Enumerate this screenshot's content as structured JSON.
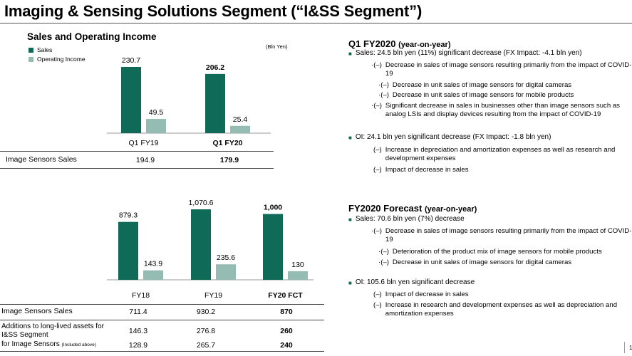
{
  "page": {
    "title": "Imaging & Sensing Solutions Segment (“I&SS Segment”)",
    "page_number": "1"
  },
  "colors": {
    "sales": "#0f6b57",
    "oi": "#94bcb2"
  },
  "chart_data": [
    {
      "type": "bar",
      "title": "Sales and Operating Income",
      "unit": "(Bln Yen)",
      "categories": [
        "Q1 FY19",
        "Q1 FY20"
      ],
      "series": [
        {
          "name": "Sales",
          "values": [
            230.7,
            206.2
          ],
          "labels": [
            "230.7",
            "206.2"
          ]
        },
        {
          "name": "Operating Income",
          "values": [
            49.5,
            25.4
          ],
          "labels": [
            "49.5",
            "25.4"
          ]
        }
      ],
      "ylim": [
        0,
        230.7
      ]
    },
    {
      "type": "bar",
      "categories": [
        "FY18",
        "FY19",
        "FY20 FCT"
      ],
      "series": [
        {
          "name": "Sales",
          "values": [
            879.3,
            1070.6,
            1000
          ],
          "labels": [
            "879.3",
            "1,070.6",
            "1,000"
          ]
        },
        {
          "name": "Operating Income",
          "values": [
            143.9,
            235.6,
            130
          ],
          "labels": [
            "143.9",
            "235.6",
            "130"
          ]
        }
      ],
      "ylim": [
        0,
        1070.6
      ]
    }
  ],
  "table1": {
    "rows": [
      {
        "label": "Image Sensors Sales",
        "values": [
          "194.9",
          "179.9"
        ]
      }
    ]
  },
  "table2": {
    "rows": [
      {
        "label": "Image Sensors Sales",
        "values": [
          "711.4",
          "930.2",
          "870"
        ]
      },
      {
        "label": "Additions to long-lived assets for I&SS Segment",
        "label_line1": "Additions to long-lived assets for",
        "label_line2": "I&SS Segment",
        "values": [
          "146.3",
          "276.8",
          "260"
        ]
      },
      {
        "label": "for Image Sensors",
        "label_note": "(Included above)",
        "values": [
          "128.9",
          "265.7",
          "240"
        ]
      }
    ]
  },
  "q1": {
    "title": "Q1 FY2020",
    "subtitle": "(year-on-year)",
    "sales_bullet": "Sales: 24.5 bln yen (11%) significant decrease (FX Impact: -4.1 bln yen)",
    "sales_items": [
      {
        "marker": "·(–)",
        "text": "Decrease in sales of image sensors resulting primarily from the impact of COVID-19"
      },
      {
        "marker": "·(–)",
        "text": "Decrease in unit sales of image sensors for digital cameras"
      },
      {
        "marker": "·(–)",
        "text": "Decrease in unit sales of image sensors for mobile products"
      },
      {
        "marker": "·(–)",
        "text": "Significant decrease in sales in businesses other than image sensors such as analog LSIs and display devices resulting from the impact of COVID-19"
      }
    ],
    "oi_bullet": "OI: 24.1 bln yen significant decrease (FX Impact: -1.8 bln yen)",
    "oi_items": [
      {
        "marker": "(–)",
        "text": "Increase in depreciation and amortization expenses as well as research and development expenses"
      },
      {
        "marker": "(–)",
        "text": "Impact of decrease in sales"
      }
    ]
  },
  "forecast": {
    "title": "FY2020 Forecast",
    "subtitle": "(year-on-year)",
    "sales_bullet": "Sales: 70.6 bln yen (7%) decrease",
    "sales_items": [
      {
        "marker": "·(–)",
        "text": "Decrease in sales of image sensors resulting primarily from the impact of COVID-19"
      },
      {
        "marker": "·(–)",
        "text": "Deterioration of the product mix of image sensors for mobile products"
      },
      {
        "marker": "·(–)",
        "text": "Decrease in unit sales of image sensors for digital cameras"
      }
    ],
    "oi_bullet": "OI: 105.6 bln yen significant decrease",
    "oi_items": [
      {
        "marker": "(–)",
        "text": "Impact of decrease in sales"
      },
      {
        "marker": "(–)",
        "text": "Increase in research and development expenses as well as depreciation and amortization expenses"
      }
    ]
  }
}
